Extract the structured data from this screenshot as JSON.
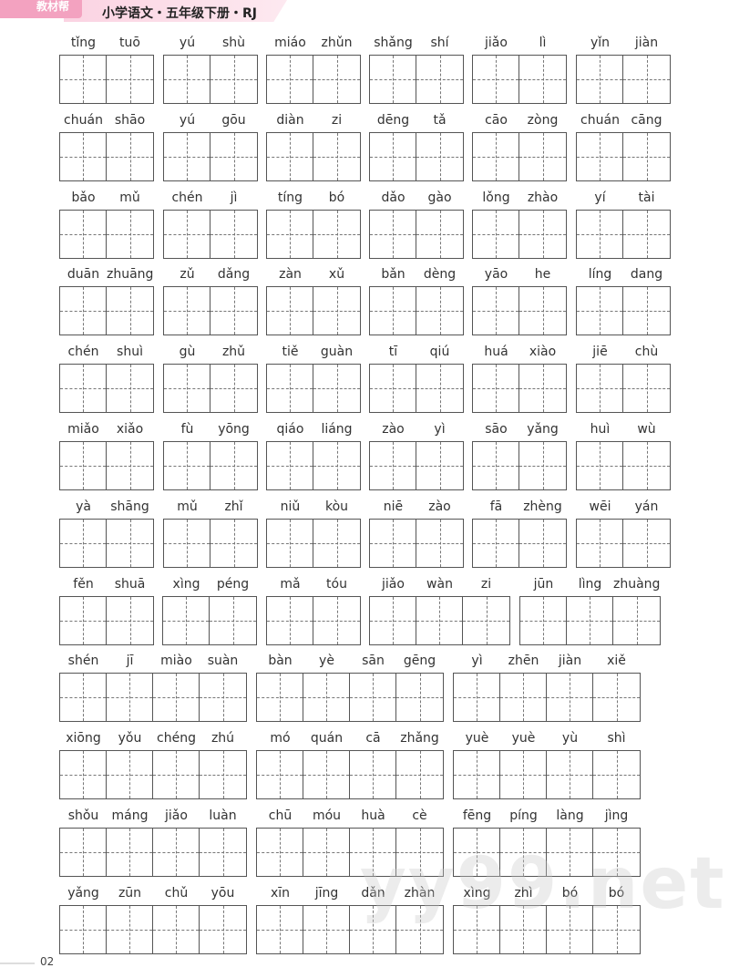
{
  "header": {
    "tab_label": "教材帮",
    "title": "小学语文・五年级下册・RJ"
  },
  "rows": [
    [
      [
        "tǐng",
        "tuō"
      ],
      [
        "yú",
        "shù"
      ],
      [
        "miáo",
        "zhǔn"
      ],
      [
        "shǎng",
        "shí"
      ],
      [
        "jiǎo",
        "lì"
      ],
      [
        "yǐn",
        "jiàn"
      ]
    ],
    [
      [
        "chuán",
        "shāo"
      ],
      [
        "yú",
        "gōu"
      ],
      [
        "diàn",
        "zi"
      ],
      [
        "dēng",
        "tǎ"
      ],
      [
        "cāo",
        "zòng"
      ],
      [
        "chuán",
        "cāng"
      ]
    ],
    [
      [
        "bǎo",
        "mǔ"
      ],
      [
        "chén",
        "jì"
      ],
      [
        "tíng",
        "bó"
      ],
      [
        "dǎo",
        "gào"
      ],
      [
        "lǒng",
        "zhào"
      ],
      [
        "yí",
        "tài"
      ]
    ],
    [
      [
        "duān",
        "zhuāng"
      ],
      [
        "zǔ",
        "dǎng"
      ],
      [
        "zàn",
        "xǔ"
      ],
      [
        "bǎn",
        "dèng"
      ],
      [
        "yāo",
        "he"
      ],
      [
        "líng",
        "dang"
      ]
    ],
    [
      [
        "chén",
        "shuì"
      ],
      [
        "gù",
        "zhǔ"
      ],
      [
        "tiě",
        "guàn"
      ],
      [
        "tī",
        "qiú"
      ],
      [
        "huá",
        "xiào"
      ],
      [
        "jiē",
        "chù"
      ]
    ],
    [
      [
        "miǎo",
        "xiǎo"
      ],
      [
        "fù",
        "yōng"
      ],
      [
        "qiáo",
        "liáng"
      ],
      [
        "zào",
        "yì"
      ],
      [
        "sāo",
        "yǎng"
      ],
      [
        "huì",
        "wù"
      ]
    ],
    [
      [
        "yà",
        "shāng"
      ],
      [
        "mǔ",
        "zhǐ"
      ],
      [
        "niǔ",
        "kòu"
      ],
      [
        "niē",
        "zào"
      ],
      [
        "fā",
        "zhèng"
      ],
      [
        "wēi",
        "yán"
      ]
    ],
    [
      [
        "fěn",
        "shuā"
      ],
      [
        "xìng",
        "péng"
      ],
      [
        "mǎ",
        "tóu"
      ],
      [
        "jiǎo",
        "wàn",
        "zi"
      ],
      [
        "jūn",
        "lìng",
        "zhuàng"
      ]
    ],
    [
      [
        "shén",
        "jī",
        "miào",
        "suàn"
      ],
      [
        "bàn",
        "yè",
        "sān",
        "gēng"
      ],
      [
        "yì",
        "zhēn",
        "jiàn",
        "xiě"
      ]
    ],
    [
      [
        "xiōng",
        "yǒu",
        "chéng",
        "zhú"
      ],
      [
        "mó",
        "quán",
        "cā",
        "zhǎng"
      ],
      [
        "yuè",
        "yuè",
        "yù",
        "shì"
      ]
    ],
    [
      [
        "shǒu",
        "máng",
        "jiǎo",
        "luàn"
      ],
      [
        "chū",
        "móu",
        "huà",
        "cè"
      ],
      [
        "fēng",
        "píng",
        "làng",
        "jìng"
      ]
    ],
    [
      [
        "yǎng",
        "zūn",
        "chǔ",
        "yōu"
      ],
      [
        "xīn",
        "jīng",
        "dǎn",
        "zhàn"
      ],
      [
        "xìng",
        "zhì",
        "bó",
        "bó"
      ]
    ]
  ],
  "footer": {
    "page_number": "02"
  },
  "watermark": "yy99.net"
}
